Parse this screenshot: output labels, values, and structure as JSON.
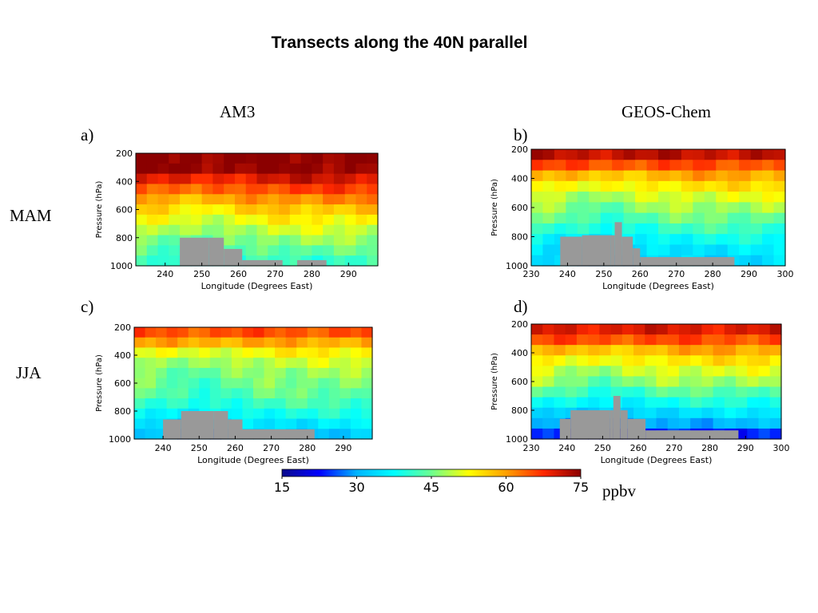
{
  "page": {
    "title": "Transects along the 40N parallel",
    "models": [
      "AM3",
      "GEOS-Chem"
    ],
    "panel_letters": [
      "a)",
      "b)",
      "c)",
      "d)"
    ],
    "seasons": [
      "MAM",
      "JJA"
    ]
  },
  "colorbar": {
    "min": 15,
    "max": 75,
    "ticks": [
      "15",
      "30",
      "45",
      "60",
      "75"
    ],
    "unit": "ppbv",
    "colormap": [
      "#0a0a8c",
      "#0000ff",
      "#00b4ff",
      "#00ffff",
      "#6cff90",
      "#ffff00",
      "#ffa000",
      "#ff2800",
      "#8b0000"
    ]
  },
  "chart_data": [
    {
      "type": "heatmap",
      "panel": "a)",
      "model": "AM3",
      "season": "MAM",
      "xlabel": "Longitude (Degrees East)",
      "ylabel": "Pressure (hPa)",
      "xlim": [
        232,
        298
      ],
      "ylim": [
        1000,
        200
      ],
      "xticks": [
        240,
        250,
        260,
        270,
        280,
        290
      ],
      "yticks": [
        200,
        400,
        600,
        800,
        1000
      ],
      "levels_hPa": [
        200,
        300,
        400,
        500,
        600,
        700,
        800,
        900,
        1000
      ],
      "profile_ppbv": [
        75,
        75,
        70,
        63,
        57,
        52,
        48,
        44,
        40
      ],
      "terrain": [
        [
          244,
          800
        ],
        [
          252,
          800
        ],
        [
          256,
          880
        ],
        [
          261,
          960
        ],
        [
          270,
          960
        ],
        [
          272,
          1000
        ],
        [
          276,
          960
        ],
        [
          282,
          960
        ],
        [
          284,
          1000
        ]
      ]
    },
    {
      "type": "heatmap",
      "panel": "b)",
      "model": "GEOS-Chem",
      "season": "MAM",
      "xlabel": "Longitude (Degrees East)",
      "ylabel": "Pressure (hPa)",
      "xlim": [
        230,
        300
      ],
      "ylim": [
        1000,
        200
      ],
      "xticks": [
        230,
        240,
        250,
        260,
        270,
        280,
        290,
        300
      ],
      "yticks": [
        200,
        400,
        600,
        800,
        1000
      ],
      "levels_hPa": [
        200,
        300,
        400,
        500,
        600,
        700,
        800,
        900,
        1000
      ],
      "profile_ppbv": [
        75,
        66,
        58,
        52,
        48,
        44,
        39,
        35,
        33
      ],
      "terrain": [
        [
          238,
          800
        ],
        [
          244,
          790
        ],
        [
          252,
          790
        ],
        [
          253,
          700
        ],
        [
          255,
          800
        ],
        [
          258,
          880
        ],
        [
          260,
          940
        ],
        [
          286,
          940
        ],
        [
          286,
          1000
        ]
      ]
    },
    {
      "type": "heatmap",
      "panel": "c)",
      "model": "AM3",
      "season": "JJA",
      "xlabel": "Longitude (Degrees East)",
      "ylabel": "Pressure (hPa)",
      "xlim": [
        232,
        298
      ],
      "ylim": [
        1000,
        200
      ],
      "xticks": [
        240,
        250,
        260,
        270,
        280,
        290
      ],
      "yticks": [
        200,
        400,
        600,
        800,
        1000
      ],
      "levels_hPa": [
        200,
        300,
        400,
        500,
        600,
        700,
        800,
        900,
        1000
      ],
      "profile_ppbv": [
        68,
        60,
        52,
        48,
        46,
        44,
        40,
        35,
        30
      ],
      "terrain": [
        [
          240,
          860
        ],
        [
          245,
          800
        ],
        [
          254,
          800
        ],
        [
          258,
          860
        ],
        [
          262,
          930
        ],
        [
          282,
          930
        ],
        [
          282,
          1000
        ]
      ]
    },
    {
      "type": "heatmap",
      "panel": "d)",
      "model": "GEOS-Chem",
      "season": "JJA",
      "xlabel": "Longitude (Degrees East)",
      "ylabel": "Pressure (hPa)",
      "xlim": [
        230,
        300
      ],
      "ylim": [
        1000,
        200
      ],
      "xticks": [
        230,
        240,
        250,
        260,
        270,
        280,
        290,
        300
      ],
      "yticks": [
        200,
        400,
        600,
        800,
        1000
      ],
      "levels_hPa": [
        200,
        300,
        400,
        500,
        600,
        700,
        800,
        900,
        1000
      ],
      "profile_ppbv": [
        72,
        66,
        58,
        52,
        48,
        42,
        36,
        30,
        20
      ],
      "terrain": [
        [
          238,
          860
        ],
        [
          241,
          800
        ],
        [
          252,
          800
        ],
        [
          253,
          700
        ],
        [
          255,
          800
        ],
        [
          257,
          860
        ],
        [
          262,
          940
        ],
        [
          288,
          940
        ],
        [
          288,
          1000
        ]
      ]
    }
  ]
}
